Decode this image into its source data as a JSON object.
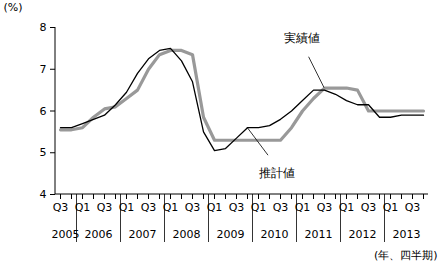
{
  "chart_data": {
    "type": "line",
    "categories": [
      "Q3",
      null,
      "Q1",
      null,
      "Q3",
      null,
      "Q1",
      null,
      "Q3",
      null,
      "Q1",
      null,
      "Q3",
      null,
      "Q1",
      null,
      "Q3",
      null,
      "Q1",
      null,
      "Q3",
      null,
      "Q1",
      null,
      "Q3",
      null,
      "Q1",
      null,
      "Q3",
      null,
      "Q1",
      null,
      "Q3",
      null
    ],
    "category_groups": [
      2005,
      2005,
      2006,
      2006,
      2006,
      2006,
      2007,
      2007,
      2007,
      2007,
      2008,
      2008,
      2008,
      2008,
      2009,
      2009,
      2009,
      2009,
      2010,
      2010,
      2010,
      2010,
      2011,
      2011,
      2011,
      2011,
      2012,
      2012,
      2012,
      2012,
      2013,
      2013,
      2013,
      2013
    ],
    "series": [
      {
        "name": "実績値",
        "color": "#999999",
        "values": [
          5.55,
          5.55,
          5.6,
          5.85,
          6.05,
          6.1,
          6.3,
          6.5,
          7.0,
          7.35,
          7.45,
          7.45,
          7.35,
          5.85,
          5.3,
          5.3,
          5.3,
          5.3,
          5.3,
          5.3,
          5.3,
          5.6,
          6.0,
          6.3,
          6.55,
          6.55,
          6.55,
          6.5,
          6.0,
          6.0,
          6.0,
          6.0,
          6.0,
          6.0
        ]
      },
      {
        "name": "推計値",
        "color": "#000000",
        "values": [
          5.6,
          5.6,
          5.7,
          5.8,
          5.9,
          6.15,
          6.45,
          6.9,
          7.25,
          7.45,
          7.5,
          7.2,
          6.7,
          5.5,
          5.05,
          5.1,
          5.35,
          5.6,
          5.6,
          5.65,
          5.8,
          6.0,
          6.25,
          6.5,
          6.5,
          6.4,
          6.25,
          6.15,
          6.15,
          5.85,
          5.85,
          5.9,
          5.9,
          5.9
        ]
      }
    ],
    "ylim": [
      4,
      8
    ],
    "yticks": [
      4,
      5,
      6,
      7,
      8
    ],
    "y_label": "(%)",
    "x_label": "(年、四半期)",
    "grid": false
  }
}
